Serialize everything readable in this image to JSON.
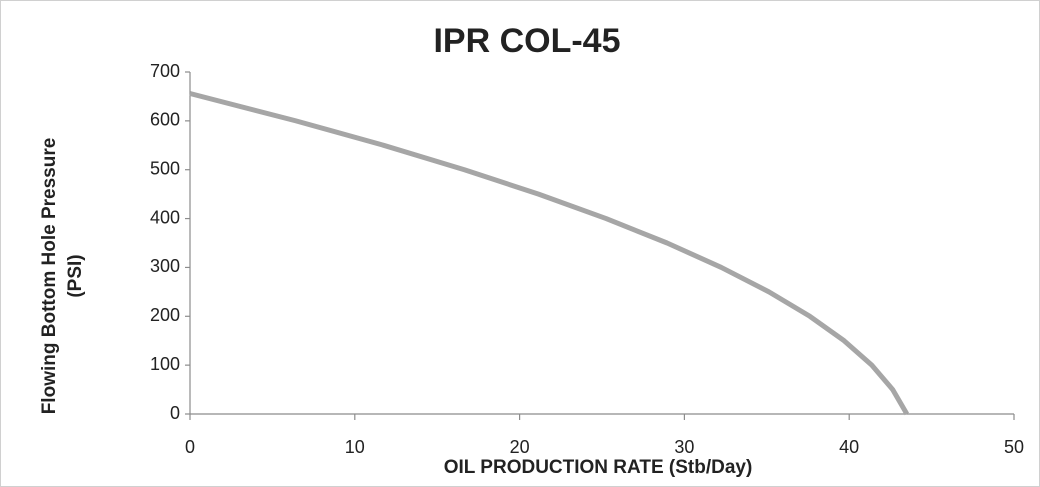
{
  "chart_data": {
    "type": "line",
    "title": "IPR COL-45",
    "xlabel": "OIL PRODUCTION RATE (Stb/Day)",
    "ylabel": [
      "Flowing Bottom Hole Pressure",
      "(PSI)"
    ],
    "series": [
      {
        "name": "IPR",
        "color": "#a6a6a6",
        "x": [
          0,
          6.43,
          11.75,
          16.65,
          21.15,
          25.25,
          28.95,
          32.24,
          35.13,
          37.61,
          39.69,
          41.37,
          42.64,
          43.5
        ],
        "values": [
          656,
          600,
          550,
          500,
          450,
          400,
          350,
          300,
          250,
          200,
          150,
          100,
          50,
          0
        ]
      }
    ],
    "xlim": [
      0,
      50
    ],
    "xticks": [
      0,
      10,
      20,
      30,
      40,
      50
    ],
    "ylim": [
      0,
      700
    ],
    "yticks": [
      0,
      100,
      200,
      300,
      400,
      500,
      600,
      700
    ],
    "grid": false,
    "legend": false
  }
}
